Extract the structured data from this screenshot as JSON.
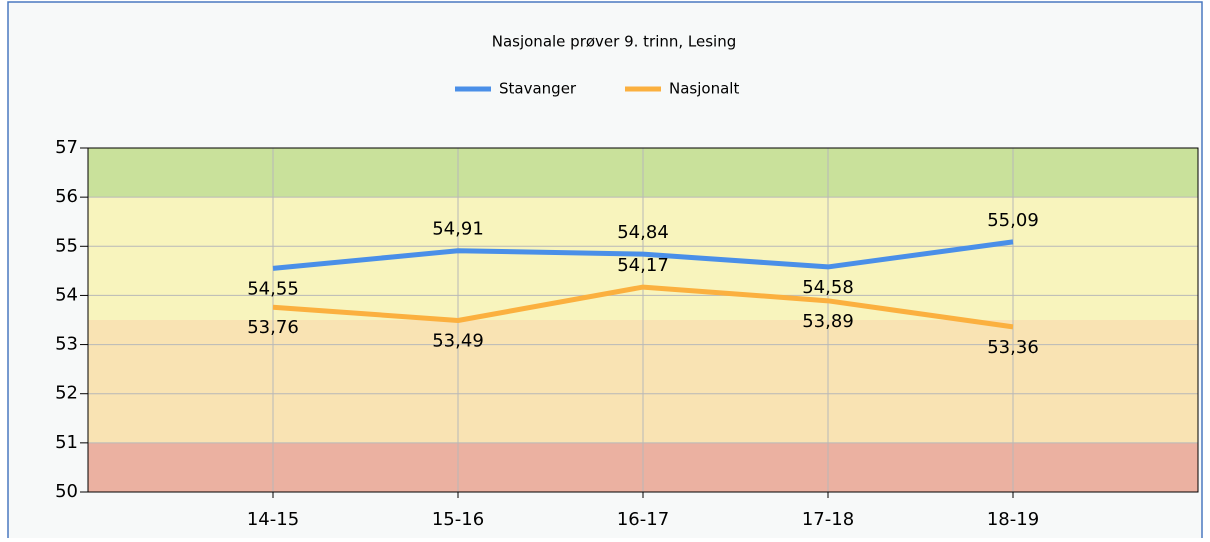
{
  "chart_data": {
    "type": "line",
    "title": "Nasjonale prøver 9. trinn, Lesing",
    "categories": [
      "14-15",
      "15-16",
      "16-17",
      "17-18",
      "18-19"
    ],
    "series": [
      {
        "name": "Stavanger",
        "color": "#4a8fe8",
        "values": [
          54.55,
          54.91,
          54.84,
          54.58,
          55.09
        ],
        "value_labels": [
          "54,55",
          "54,91",
          "54,84",
          "54,58",
          "55,09"
        ]
      },
      {
        "name": "Nasjonalt",
        "color": "#fbb03f",
        "values": [
          53.76,
          53.49,
          54.17,
          53.89,
          53.36
        ],
        "value_labels": [
          "53,76",
          "53,49",
          "54,17",
          "53,89",
          "53,36"
        ]
      }
    ],
    "bands": [
      {
        "from": 50,
        "to": 51,
        "color": "#ebb1a1"
      },
      {
        "from": 51,
        "to": 53.5,
        "color": "#f9e3b3"
      },
      {
        "from": 53.5,
        "to": 56,
        "color": "#f8f4bd"
      },
      {
        "from": 56,
        "to": 57,
        "color": "#c9e19b"
      }
    ],
    "ylim": [
      50,
      57
    ],
    "yticks": [
      50,
      51,
      52,
      53,
      54,
      55,
      56,
      57
    ],
    "grid": true,
    "legend": "top"
  }
}
